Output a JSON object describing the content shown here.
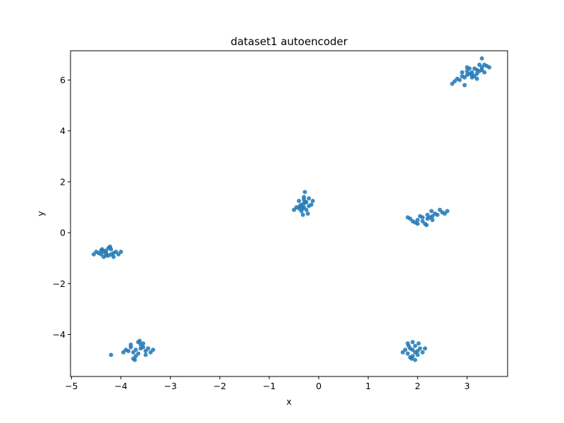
{
  "chart_data": {
    "type": "scatter",
    "title": "dataset1 autoencoder",
    "xlabel": "x",
    "ylabel": "y",
    "xlim": [
      -5.02,
      3.82
    ],
    "ylim": [
      -5.65,
      7.15
    ],
    "xticks": [
      -5,
      -4,
      -3,
      -2,
      -1,
      0,
      1,
      2,
      3
    ],
    "yticks": [
      -4,
      -2,
      0,
      2,
      4,
      6
    ],
    "xtick_labels": [
      "−5",
      "−4",
      "−3",
      "−2",
      "−1",
      "0",
      "1",
      "2",
      "3"
    ],
    "ytick_labels": [
      "−4",
      "−2",
      "0",
      "2",
      "4",
      "6"
    ],
    "grid": false,
    "color": "#1f77b4",
    "series": [
      {
        "points": [
          [
            3.05,
            6.25
          ],
          [
            2.9,
            6.15
          ],
          [
            3.1,
            6.3
          ],
          [
            3.2,
            6.4
          ],
          [
            3.3,
            6.5
          ],
          [
            3.0,
            6.2
          ],
          [
            2.8,
            6.05
          ],
          [
            3.25,
            6.35
          ],
          [
            3.15,
            6.45
          ],
          [
            3.35,
            6.6
          ],
          [
            2.95,
            6.1
          ],
          [
            3.1,
            6.2
          ],
          [
            3.2,
            6.25
          ],
          [
            3.3,
            6.4
          ],
          [
            3.4,
            6.55
          ],
          [
            2.85,
            6.0
          ],
          [
            2.75,
            5.95
          ],
          [
            3.0,
            6.35
          ],
          [
            3.1,
            6.1
          ],
          [
            3.25,
            6.6
          ],
          [
            3.3,
            6.85
          ],
          [
            3.45,
            6.5
          ],
          [
            3.05,
            6.45
          ],
          [
            2.9,
            6.3
          ],
          [
            3.15,
            6.15
          ],
          [
            3.2,
            6.05
          ],
          [
            2.95,
            5.8
          ],
          [
            2.7,
            5.85
          ],
          [
            3.35,
            6.3
          ],
          [
            3.0,
            6.5
          ]
        ]
      },
      {
        "points": [
          [
            -0.35,
            1.1
          ],
          [
            -0.3,
            1.0
          ],
          [
            -0.25,
            1.2
          ],
          [
            -0.4,
            0.95
          ],
          [
            -0.3,
            1.3
          ],
          [
            -0.2,
            1.05
          ],
          [
            -0.35,
            0.85
          ],
          [
            -0.25,
            0.9
          ],
          [
            -0.3,
            1.15
          ],
          [
            -0.4,
            1.25
          ],
          [
            -0.2,
            1.35
          ],
          [
            -0.28,
            1.6
          ],
          [
            -0.32,
            0.7
          ],
          [
            -0.45,
            1.0
          ],
          [
            -0.15,
            1.1
          ],
          [
            -0.3,
            1.4
          ],
          [
            -0.22,
            0.75
          ],
          [
            -0.38,
            1.05
          ],
          [
            -0.27,
            1.2
          ],
          [
            -0.33,
            0.95
          ],
          [
            -0.5,
            0.9
          ],
          [
            -0.12,
            1.25
          ]
        ]
      },
      {
        "points": [
          [
            2.1,
            0.6
          ],
          [
            2.2,
            0.55
          ],
          [
            2.3,
            0.65
          ],
          [
            2.0,
            0.5
          ],
          [
            1.9,
            0.45
          ],
          [
            2.4,
            0.7
          ],
          [
            2.5,
            0.8
          ],
          [
            2.15,
            0.35
          ],
          [
            2.25,
            0.6
          ],
          [
            2.35,
            0.75
          ],
          [
            1.85,
            0.55
          ],
          [
            2.05,
            0.65
          ],
          [
            2.45,
            0.9
          ],
          [
            2.55,
            0.75
          ],
          [
            2.1,
            0.45
          ],
          [
            2.2,
            0.7
          ],
          [
            1.95,
            0.4
          ],
          [
            2.3,
            0.5
          ],
          [
            2.6,
            0.85
          ],
          [
            1.8,
            0.6
          ],
          [
            2.0,
            0.35
          ],
          [
            2.28,
            0.85
          ],
          [
            2.18,
            0.3
          ]
        ]
      },
      {
        "points": [
          [
            -4.3,
            -0.8
          ],
          [
            -4.2,
            -0.85
          ],
          [
            -4.35,
            -0.75
          ],
          [
            -4.25,
            -0.9
          ],
          [
            -4.15,
            -0.8
          ],
          [
            -4.4,
            -0.85
          ],
          [
            -4.3,
            -0.7
          ],
          [
            -4.1,
            -0.75
          ],
          [
            -4.2,
            -0.65
          ],
          [
            -4.35,
            -0.95
          ],
          [
            -4.45,
            -0.8
          ],
          [
            -4.05,
            -0.85
          ],
          [
            -4.25,
            -0.6
          ],
          [
            -4.5,
            -0.75
          ],
          [
            -4.15,
            -0.95
          ],
          [
            -4.3,
            -0.9
          ],
          [
            -4.4,
            -0.7
          ],
          [
            -4.55,
            -0.85
          ],
          [
            -4.0,
            -0.75
          ],
          [
            -4.22,
            -0.55
          ],
          [
            -4.38,
            -0.65
          ]
        ]
      },
      {
        "points": [
          [
            -3.7,
            -4.6
          ],
          [
            -3.6,
            -4.55
          ],
          [
            -3.75,
            -4.7
          ],
          [
            -3.5,
            -4.65
          ],
          [
            -3.8,
            -4.5
          ],
          [
            -3.65,
            -4.75
          ],
          [
            -3.55,
            -4.5
          ],
          [
            -3.85,
            -4.65
          ],
          [
            -3.7,
            -4.85
          ],
          [
            -3.45,
            -4.55
          ],
          [
            -3.9,
            -4.6
          ],
          [
            -3.6,
            -4.4
          ],
          [
            -3.4,
            -4.7
          ],
          [
            -3.75,
            -4.95
          ],
          [
            -3.5,
            -4.8
          ],
          [
            -3.95,
            -4.7
          ],
          [
            -3.65,
            -4.3
          ],
          [
            -3.35,
            -4.6
          ],
          [
            -3.8,
            -4.4
          ],
          [
            -3.55,
            -4.35
          ],
          [
            -4.2,
            -4.8
          ],
          [
            -3.72,
            -5.0
          ],
          [
            -3.62,
            -4.25
          ]
        ]
      },
      {
        "points": [
          [
            1.9,
            -4.6
          ],
          [
            1.95,
            -4.7
          ],
          [
            1.85,
            -4.55
          ],
          [
            2.0,
            -4.65
          ],
          [
            1.8,
            -4.75
          ],
          [
            1.9,
            -4.85
          ],
          [
            2.05,
            -4.55
          ],
          [
            1.75,
            -4.6
          ],
          [
            1.95,
            -4.45
          ],
          [
            1.85,
            -4.9
          ],
          [
            2.1,
            -4.7
          ],
          [
            1.8,
            -4.35
          ],
          [
            2.0,
            -4.8
          ],
          [
            1.9,
            -4.3
          ],
          [
            1.7,
            -4.7
          ],
          [
            2.15,
            -4.55
          ],
          [
            1.95,
            -5.0
          ],
          [
            1.82,
            -4.45
          ],
          [
            2.02,
            -4.35
          ],
          [
            1.88,
            -4.95
          ]
        ]
      }
    ]
  }
}
